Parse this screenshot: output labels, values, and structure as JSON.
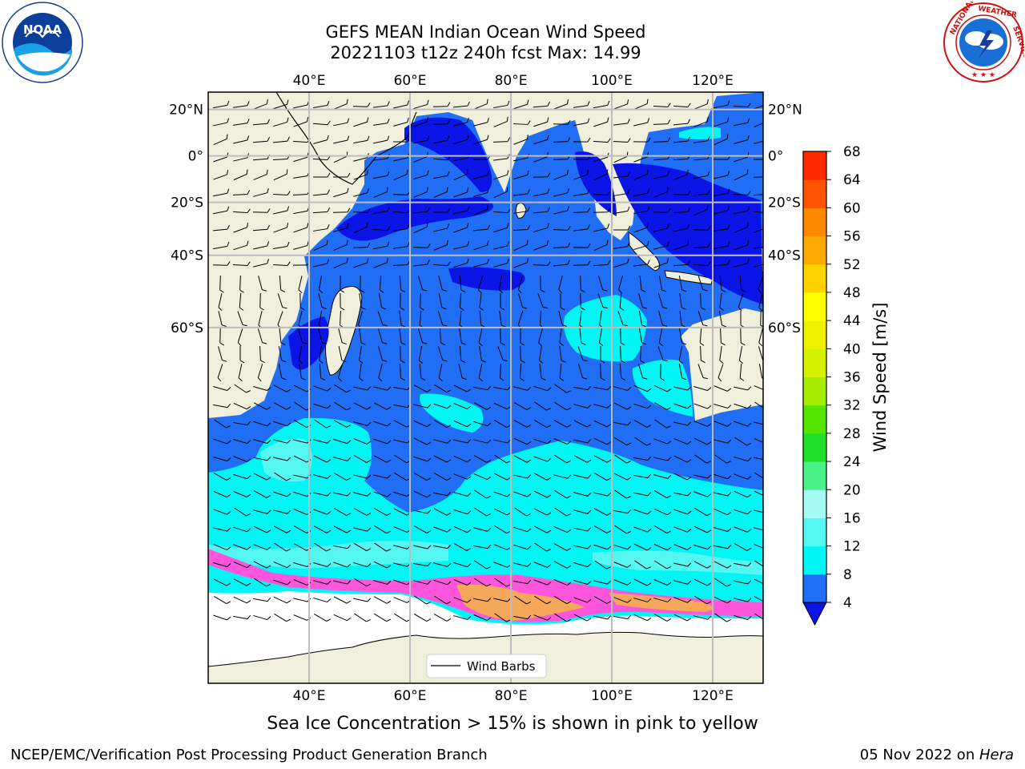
{
  "title_line1": "GEFS MEAN Indian Ocean Wind Speed",
  "title_line2": "20221103 t12z 240h fcst   Max: 14.99",
  "logos": {
    "left": {
      "name": "noaa-logo",
      "text": "NOAA",
      "ring_text": "NATIONAL OCEANIC AND ATMOSPHERIC ADMINISTRATION · U.S. DEPARTMENT OF COMMERCE"
    },
    "right": {
      "name": "nws-logo",
      "ring_text": "NATIONAL WEATHER SERVICE"
    }
  },
  "map": {
    "lon_range": [
      20,
      130
    ],
    "lat_range": [
      -88,
      27
    ],
    "lon_ticks": [
      {
        "value": 40,
        "label": "40°E"
      },
      {
        "value": 60,
        "label": "60°E"
      },
      {
        "value": 80,
        "label": "80°E"
      },
      {
        "value": 100,
        "label": "100°E"
      },
      {
        "value": 120,
        "label": "120°E"
      }
    ],
    "lat_ticks": [
      {
        "value": 20,
        "label": "20°N"
      },
      {
        "value": 0,
        "label": "0°"
      },
      {
        "value": -20,
        "label": "20°S"
      },
      {
        "value": -40,
        "label": "40°S"
      },
      {
        "value": -60,
        "label": "60°S"
      }
    ],
    "gridlines": true,
    "colors": {
      "land": "#efefdc",
      "ocean_4_8": "#1f6ef5",
      "ocean_calm": "#0a14e6",
      "ocean_8_12": "#00f5f5",
      "ocean_12_16": "#55f7f2",
      "sea_ice_pink": "#ff55dd",
      "sea_ice_orange": "#f6a85a",
      "antarctic": "#ffffff",
      "grid": "#bdbdbd"
    },
    "legend_label": "Wind Barbs"
  },
  "colorbar": {
    "title": "Wind Speed [m/s]",
    "extend": "min",
    "levels": [
      4,
      8,
      12,
      16,
      20,
      24,
      28,
      32,
      36,
      40,
      44,
      48,
      52,
      56,
      60,
      64,
      68
    ],
    "colors": [
      "#1f6ef5",
      "#00f5f5",
      "#55f7f2",
      "#a5fbf4",
      "#4cf08a",
      "#1ee02a",
      "#55e600",
      "#a6ec00",
      "#d4f200",
      "#eef200",
      "#ffff00",
      "#ffd200",
      "#ffaa00",
      "#ff8800",
      "#ff5500",
      "#ff2a00"
    ],
    "extend_color": "#0a14e6"
  },
  "subtitle": "Sea Ice Concentration > 15% is shown in pink to yellow",
  "footer": {
    "left": "NCEP/EMC/Verification Post Processing Product Generation Branch",
    "date": "05 Nov 2022 on ",
    "host": "Hera"
  }
}
